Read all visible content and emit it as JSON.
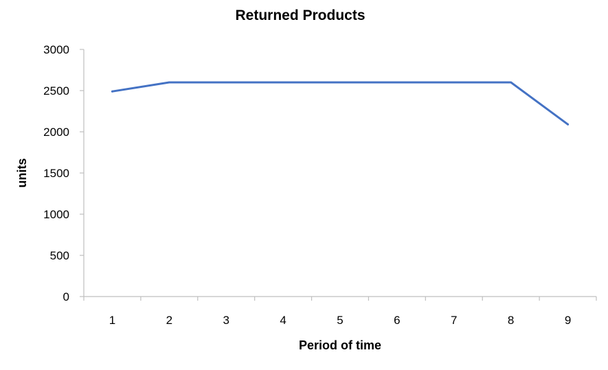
{
  "chart_data": {
    "type": "line",
    "title": "Returned Products",
    "xlabel": "Period of time",
    "ylabel": "units",
    "x": [
      1,
      2,
      3,
      4,
      5,
      6,
      7,
      8,
      9
    ],
    "series": [
      {
        "values": [
          2490,
          2600,
          2600,
          2600,
          2600,
          2600,
          2600,
          2600,
          2090
        ],
        "color": "#4472c4"
      }
    ],
    "ylim": [
      0,
      3000
    ],
    "yticks": [
      0,
      500,
      1000,
      1500,
      2000,
      2500,
      3000
    ],
    "grid": false,
    "legend": "none"
  }
}
